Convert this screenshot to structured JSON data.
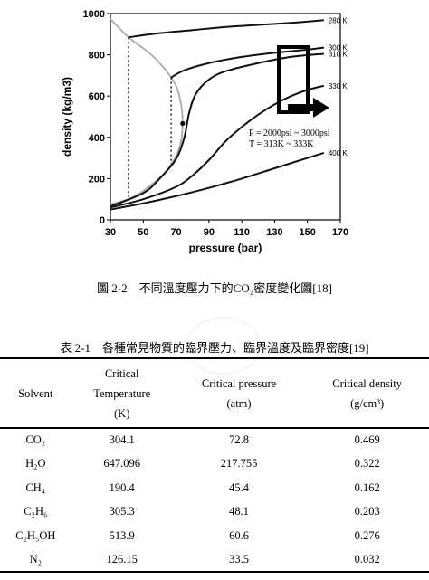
{
  "chart_data": {
    "type": "line",
    "xlabel": "pressure (bar)",
    "ylabel": "density (kg/m3)",
    "xlim": [
      30,
      170
    ],
    "ylim": [
      0,
      1000
    ],
    "xticks": [
      30,
      50,
      70,
      90,
      110,
      130,
      150,
      170
    ],
    "yticks": [
      0,
      200,
      400,
      600,
      800,
      1000
    ],
    "grid": false,
    "series": [
      {
        "name": "280 K",
        "x": [
          41,
          60,
          80,
          100,
          120,
          140,
          160
        ],
        "y": [
          885,
          905,
          920,
          935,
          945,
          955,
          968
        ]
      },
      {
        "name": "300 K",
        "x": [
          67,
          75,
          90,
          110,
          130,
          150,
          160
        ],
        "y": [
          690,
          725,
          760,
          790,
          810,
          825,
          835
        ]
      },
      {
        "name": "310 K",
        "x": [
          30,
          50,
          60,
          70,
          75,
          78,
          82,
          90,
          100,
          120,
          140,
          160
        ],
        "y": [
          65,
          130,
          200,
          295,
          400,
          520,
          610,
          680,
          720,
          760,
          790,
          805
        ]
      },
      {
        "name": "330 K",
        "x": [
          30,
          50,
          70,
          80,
          90,
          100,
          110,
          120,
          130,
          140,
          150,
          160
        ],
        "y": [
          60,
          100,
          160,
          215,
          290,
          380,
          450,
          510,
          560,
          600,
          630,
          650
        ]
      },
      {
        "name": "400 K",
        "x": [
          30,
          50,
          70,
          90,
          110,
          130,
          150,
          160
        ],
        "y": [
          50,
          80,
          115,
          155,
          200,
          250,
          300,
          325
        ]
      }
    ],
    "saturation_curve": {
      "x": [
        30,
        45,
        60,
        67,
        72,
        74,
        72,
        67,
        55,
        41,
        30
      ],
      "y": [
        75,
        115,
        205,
        270,
        350,
        470,
        600,
        690,
        800,
        885,
        975
      ]
    },
    "critical_point": {
      "x": 74,
      "y": 467
    },
    "annotation": [
      "P = 2000psi ~ 3000psi",
      "T = 313K ~ 333K"
    ]
  },
  "figure_caption": "圖 2-2　不同溫度壓力下的CO₂密度變化圖[18]",
  "table": {
    "title": "表 2-1　各種常見物質的臨界壓力、臨界溫度及臨界密度[19]",
    "headers": [
      {
        "lines": [
          "Solvent"
        ]
      },
      {
        "lines": [
          "Critical",
          "Temperature",
          "(K)"
        ]
      },
      {
        "lines": [
          "Critical pressure",
          "(atm)"
        ]
      },
      {
        "lines": [
          "Critical density",
          "(g/cm³)"
        ]
      }
    ],
    "rows": [
      [
        "CO₂",
        "304.1",
        "72.8",
        "0.469"
      ],
      [
        "H₂O",
        "647.096",
        "217.755",
        "0.322"
      ],
      [
        "CH₄",
        "190.4",
        "45.4",
        "0.162"
      ],
      [
        "C₂H₆",
        "305.3",
        "48.1",
        "0.203"
      ],
      [
        "C₂H₅OH",
        "513.9",
        "60.6",
        "0.276"
      ],
      [
        "N₂",
        "126.15",
        "33.5",
        "0.032"
      ]
    ]
  }
}
